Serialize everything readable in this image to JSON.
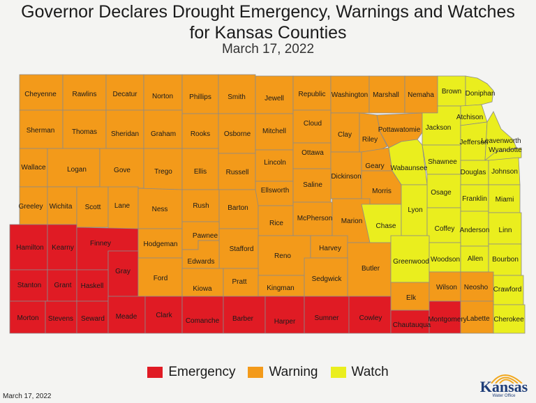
{
  "header": {
    "title_line1": "Governor Declares Drought Emergency, Warnings and Watches",
    "title_line2": "for Kansas Counties",
    "date": "March 17, 2022"
  },
  "colors": {
    "Emergency": "#e01b24",
    "Warning": "#f39a1a",
    "Watch": "#eaee1e",
    "outline": "#8a8a8a"
  },
  "legend": [
    {
      "label": "Emergency",
      "status": "Emergency"
    },
    {
      "label": "Warning",
      "status": "Warning"
    },
    {
      "label": "Watch",
      "status": "Watch"
    }
  ],
  "counties": [
    {
      "name": "Cheyenne",
      "status": "Warning"
    },
    {
      "name": "Rawlins",
      "status": "Warning"
    },
    {
      "name": "Decatur",
      "status": "Warning"
    },
    {
      "name": "Norton",
      "status": "Warning"
    },
    {
      "name": "Phillips",
      "status": "Warning"
    },
    {
      "name": "Smith",
      "status": "Warning"
    },
    {
      "name": "Jewell",
      "status": "Warning"
    },
    {
      "name": "Republic",
      "status": "Warning"
    },
    {
      "name": "Washington",
      "status": "Warning"
    },
    {
      "name": "Marshall",
      "status": "Warning"
    },
    {
      "name": "Nemaha",
      "status": "Warning"
    },
    {
      "name": "Brown",
      "status": "Watch"
    },
    {
      "name": "Doniphan",
      "status": "Watch"
    },
    {
      "name": "Sherman",
      "status": "Warning"
    },
    {
      "name": "Thomas",
      "status": "Warning"
    },
    {
      "name": "Sheridan",
      "status": "Warning"
    },
    {
      "name": "Graham",
      "status": "Warning"
    },
    {
      "name": "Rooks",
      "status": "Warning"
    },
    {
      "name": "Osborne",
      "status": "Warning"
    },
    {
      "name": "Mitchell",
      "status": "Warning"
    },
    {
      "name": "Cloud",
      "status": "Warning"
    },
    {
      "name": "Clay",
      "status": "Warning"
    },
    {
      "name": "Riley",
      "status": "Warning"
    },
    {
      "name": "Pottawatomie",
      "status": "Warning"
    },
    {
      "name": "Jackson",
      "status": "Watch"
    },
    {
      "name": "Atchison",
      "status": "Watch"
    },
    {
      "name": "Jefferson",
      "status": "Watch"
    },
    {
      "name": "Leavenworth",
      "status": "Watch"
    },
    {
      "name": "Wyandotte",
      "status": "Watch"
    },
    {
      "name": "Wallace",
      "status": "Warning"
    },
    {
      "name": "Logan",
      "status": "Warning"
    },
    {
      "name": "Gove",
      "status": "Warning"
    },
    {
      "name": "Trego",
      "status": "Warning"
    },
    {
      "name": "Ellis",
      "status": "Warning"
    },
    {
      "name": "Russell",
      "status": "Warning"
    },
    {
      "name": "Lincoln",
      "status": "Warning"
    },
    {
      "name": "Ottawa",
      "status": "Warning"
    },
    {
      "name": "Dickinson",
      "status": "Warning"
    },
    {
      "name": "Geary",
      "status": "Warning"
    },
    {
      "name": "Wabaunsee",
      "status": "Watch"
    },
    {
      "name": "Shawnee",
      "status": "Watch"
    },
    {
      "name": "Douglas",
      "status": "Watch"
    },
    {
      "name": "Johnson",
      "status": "Watch"
    },
    {
      "name": "Greeley",
      "status": "Warning"
    },
    {
      "name": "Wichita",
      "status": "Warning"
    },
    {
      "name": "Scott",
      "status": "Warning"
    },
    {
      "name": "Lane",
      "status": "Warning"
    },
    {
      "name": "Ness",
      "status": "Warning"
    },
    {
      "name": "Rush",
      "status": "Warning"
    },
    {
      "name": "Barton",
      "status": "Warning"
    },
    {
      "name": "Ellsworth",
      "status": "Warning"
    },
    {
      "name": "Saline",
      "status": "Warning"
    },
    {
      "name": "Morris",
      "status": "Warning"
    },
    {
      "name": "Osage",
      "status": "Watch"
    },
    {
      "name": "Franklin",
      "status": "Watch"
    },
    {
      "name": "Miami",
      "status": "Watch"
    },
    {
      "name": "Rice",
      "status": "Warning"
    },
    {
      "name": "McPherson",
      "status": "Warning"
    },
    {
      "name": "Marion",
      "status": "Warning"
    },
    {
      "name": "Chase",
      "status": "Watch"
    },
    {
      "name": "Lyon",
      "status": "Watch"
    },
    {
      "name": "Coffey",
      "status": "Watch"
    },
    {
      "name": "Anderson",
      "status": "Watch"
    },
    {
      "name": "Linn",
      "status": "Watch"
    },
    {
      "name": "Hamilton",
      "status": "Emergency"
    },
    {
      "name": "Kearny",
      "status": "Emergency"
    },
    {
      "name": "Finney",
      "status": "Emergency"
    },
    {
      "name": "Hodgeman",
      "status": "Warning"
    },
    {
      "name": "Pawnee",
      "status": "Warning"
    },
    {
      "name": "Stafford",
      "status": "Warning"
    },
    {
      "name": "Reno",
      "status": "Warning"
    },
    {
      "name": "Harvey",
      "status": "Warning"
    },
    {
      "name": "Butler",
      "status": "Warning"
    },
    {
      "name": "Greenwood",
      "status": "Watch"
    },
    {
      "name": "Woodson",
      "status": "Watch"
    },
    {
      "name": "Allen",
      "status": "Watch"
    },
    {
      "name": "Bourbon",
      "status": "Watch"
    },
    {
      "name": "Gray",
      "status": "Emergency"
    },
    {
      "name": "Edwards",
      "status": "Warning"
    },
    {
      "name": "Stanton",
      "status": "Emergency"
    },
    {
      "name": "Grant",
      "status": "Emergency"
    },
    {
      "name": "Haskell",
      "status": "Emergency"
    },
    {
      "name": "Ford",
      "status": "Warning"
    },
    {
      "name": "Kiowa",
      "status": "Warning"
    },
    {
      "name": "Pratt",
      "status": "Warning"
    },
    {
      "name": "Kingman",
      "status": "Warning"
    },
    {
      "name": "Sedgwick",
      "status": "Warning"
    },
    {
      "name": "Elk",
      "status": "Warning"
    },
    {
      "name": "Wilson",
      "status": "Warning"
    },
    {
      "name": "Neosho",
      "status": "Warning"
    },
    {
      "name": "Crawford",
      "status": "Watch"
    },
    {
      "name": "Morton",
      "status": "Emergency"
    },
    {
      "name": "Stevens",
      "status": "Emergency"
    },
    {
      "name": "Seward",
      "status": "Emergency"
    },
    {
      "name": "Meade",
      "status": "Emergency"
    },
    {
      "name": "Clark",
      "status": "Emergency"
    },
    {
      "name": "Comanche",
      "status": "Emergency"
    },
    {
      "name": "Barber",
      "status": "Emergency"
    },
    {
      "name": "Harper",
      "status": "Emergency"
    },
    {
      "name": "Sumner",
      "status": "Emergency"
    },
    {
      "name": "Cowley",
      "status": "Emergency"
    },
    {
      "name": "Chautauqua",
      "status": "Emergency"
    },
    {
      "name": "Montgomery",
      "status": "Emergency"
    },
    {
      "name": "Labette",
      "status": "Warning"
    },
    {
      "name": "Cherokee",
      "status": "Watch"
    }
  ],
  "footer": {
    "date": "March 17, 2022",
    "logo_word": "Kansas",
    "logo_sub": "Water Office"
  }
}
